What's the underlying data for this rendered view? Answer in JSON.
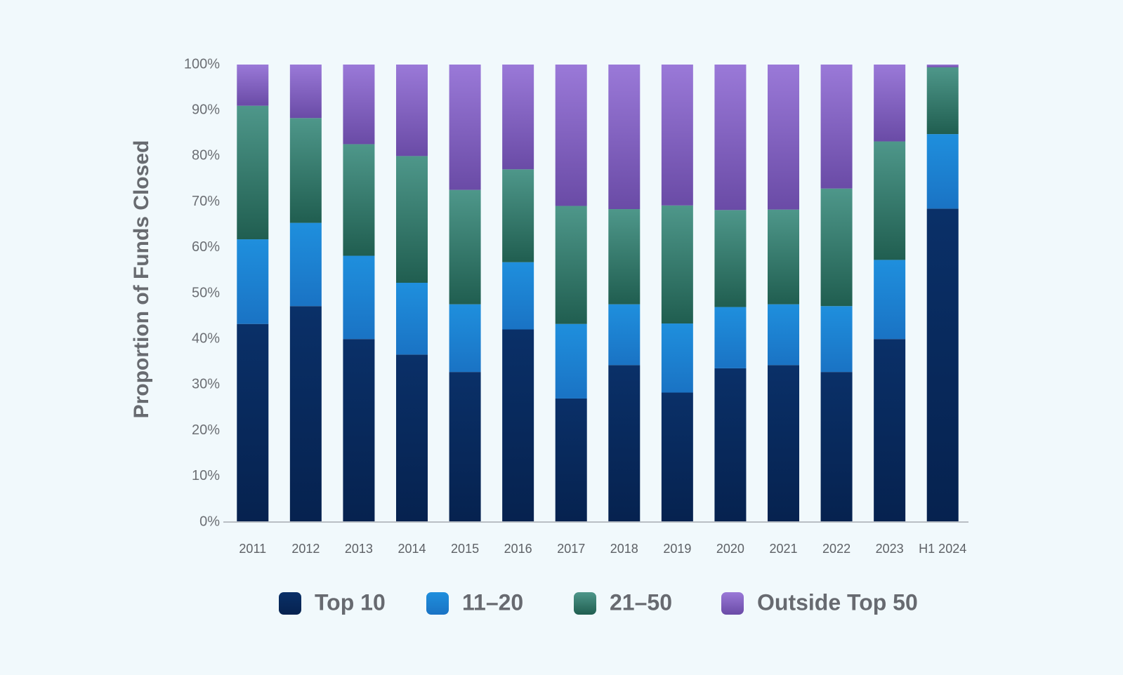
{
  "chart_data": {
    "type": "bar",
    "stacked": true,
    "title": "",
    "xlabel": "",
    "ylabel": "Proportion of Funds Closed",
    "ylim": [
      0,
      100
    ],
    "y_ticks": [
      "0%",
      "10%",
      "20%",
      "30%",
      "40%",
      "50%",
      "60%",
      "70%",
      "80%",
      "90%",
      "100%"
    ],
    "categories": [
      "2011",
      "2012",
      "2013",
      "2014",
      "2015",
      "2016",
      "2017",
      "2018",
      "2019",
      "2020",
      "2021",
      "2022",
      "2023",
      "H1 2024"
    ],
    "series": [
      {
        "name": "Top 10",
        "color": "#0a3068",
        "color_dark": "#06224f",
        "values": [
          43.3,
          47.2,
          40.0,
          36.6,
          32.8,
          42.1,
          27.0,
          34.3,
          28.3,
          33.6,
          34.3,
          32.8,
          40.0,
          68.5
        ]
      },
      {
        "name": "11–20",
        "color": "#1f8fdd",
        "color_dark": "#1a73c4",
        "values": [
          18.5,
          18.2,
          18.2,
          15.7,
          14.8,
          14.7,
          16.3,
          13.3,
          15.1,
          13.4,
          13.3,
          14.4,
          17.3,
          16.3
        ]
      },
      {
        "name": "21–50",
        "color": "#4e978a",
        "color_dark": "#205e50",
        "values": [
          29.2,
          22.9,
          24.4,
          27.7,
          25.0,
          20.3,
          25.8,
          20.8,
          25.8,
          21.2,
          20.7,
          25.7,
          25.9,
          14.6
        ]
      },
      {
        "name": "Outside Top 50",
        "color": "#9a79d8",
        "color_dark": "#6a4ba6",
        "values": [
          9.0,
          11.7,
          17.4,
          20.0,
          27.4,
          22.9,
          30.9,
          31.6,
          30.8,
          31.8,
          31.7,
          27.1,
          16.8,
          0.6
        ]
      }
    ],
    "legend": [
      "Top 10",
      "11–20",
      "21–50",
      "Outside Top 50"
    ],
    "legend_position": "bottom",
    "grid": false
  }
}
